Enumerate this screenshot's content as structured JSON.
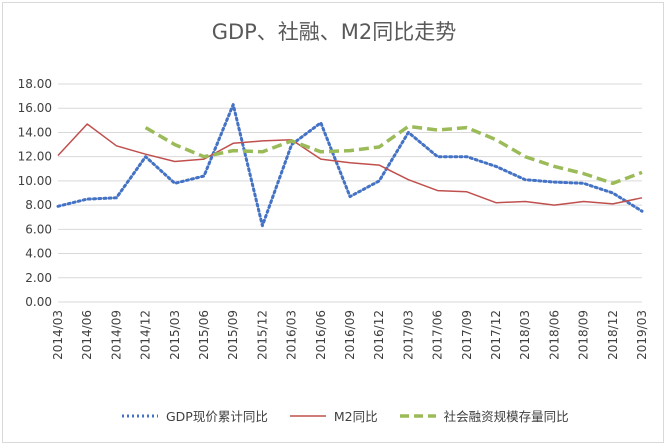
{
  "chart_data": {
    "type": "line",
    "title": "GDP、社融、M2同比走势",
    "ylim": [
      0,
      18
    ],
    "yticks": [
      "0.00",
      "2.00",
      "4.00",
      "6.00",
      "8.00",
      "10.00",
      "12.00",
      "14.00",
      "16.00",
      "18.00"
    ],
    "categories": [
      "2014/03",
      "2014/06",
      "2014/09",
      "2014/12",
      "2015/03",
      "2015/06",
      "2015/09",
      "2015/12",
      "2016/03",
      "2016/06",
      "2016/09",
      "2016/12",
      "2017/03",
      "2017/06",
      "2017/09",
      "2017/12",
      "2018/03",
      "2018/06",
      "2018/09",
      "2018/12",
      "2019/03"
    ],
    "series": [
      {
        "name": "GDP现价累计同比",
        "color": "#4472c4",
        "style": "dotted",
        "values": [
          7.9,
          8.5,
          8.6,
          12.0,
          9.8,
          10.4,
          16.3,
          6.3,
          13.0,
          14.8,
          8.7,
          10.0,
          14.0,
          12.0,
          12.0,
          11.2,
          10.1,
          9.9,
          9.8,
          9.0,
          7.5
        ]
      },
      {
        "name": "M2同比",
        "color": "#c0504d",
        "style": "solid",
        "values": [
          12.1,
          14.7,
          12.9,
          12.2,
          11.6,
          11.8,
          13.1,
          13.3,
          13.4,
          11.8,
          11.5,
          11.3,
          10.1,
          9.2,
          9.1,
          8.2,
          8.3,
          8.0,
          8.3,
          8.1,
          8.6
        ]
      },
      {
        "name": "社会融资规模存量同比",
        "color": "#9bbb59",
        "style": "dashed",
        "values": [
          null,
          null,
          null,
          14.4,
          13.0,
          12.0,
          12.5,
          12.4,
          13.3,
          12.4,
          12.5,
          12.8,
          14.5,
          14.2,
          14.4,
          13.4,
          12.0,
          11.2,
          10.6,
          9.8,
          10.7
        ]
      }
    ],
    "grid": true,
    "legend": "bottom"
  }
}
